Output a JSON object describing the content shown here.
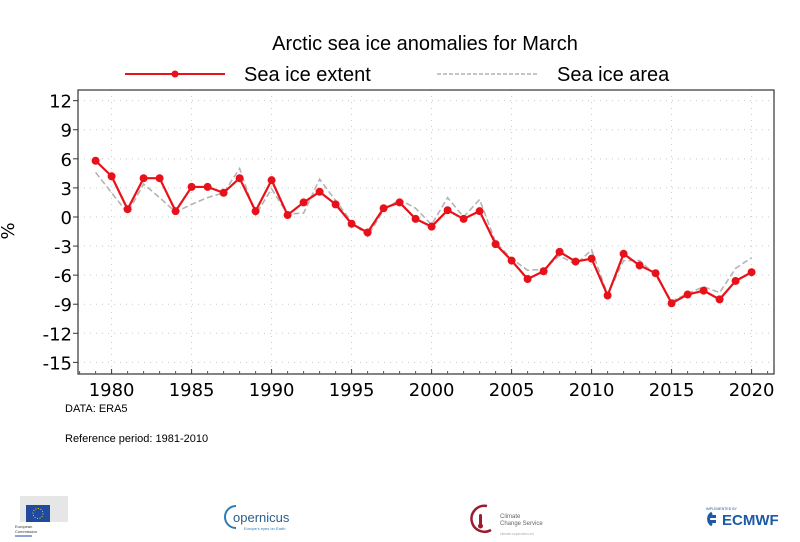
{
  "chart_data": {
    "type": "line",
    "title": "Arctic sea ice anomalies for March",
    "xlabel": "",
    "ylabel": "%",
    "xlim": [
      1977.9,
      2021.4
    ],
    "ylim": [
      -16.2,
      13.1
    ],
    "xticks": [
      1980,
      1985,
      1990,
      1995,
      2000,
      2005,
      2010,
      2015,
      2020
    ],
    "xtick_labels": [
      "1980",
      "1985",
      "1990",
      "1995",
      "2000",
      "2005",
      "2010",
      "2015",
      "2020"
    ],
    "yticks": [
      12,
      9,
      6,
      3,
      0,
      -3,
      -6,
      -9,
      -12,
      -15
    ],
    "ytick_labels": [
      "12",
      "9",
      "6",
      "3",
      "0",
      "-3",
      "-6",
      "-9",
      "-12",
      "-15"
    ],
    "grid": true,
    "legend_position": "top-center",
    "x": [
      1979,
      1980,
      1981,
      1982,
      1983,
      1984,
      1985,
      1986,
      1987,
      1988,
      1989,
      1990,
      1991,
      1992,
      1993,
      1994,
      1995,
      1996,
      1997,
      1998,
      1999,
      2000,
      2001,
      2002,
      2003,
      2004,
      2005,
      2006,
      2007,
      2008,
      2009,
      2010,
      2011,
      2012,
      2013,
      2014,
      2015,
      2016,
      2017,
      2018,
      2019,
      2020
    ],
    "series": [
      {
        "name": "Sea ice extent",
        "color": "#e8111a",
        "style": "solid-markers",
        "values": [
          5.8,
          4.2,
          0.8,
          4.0,
          4.0,
          0.6,
          3.1,
          3.1,
          2.5,
          4.0,
          0.6,
          3.8,
          0.2,
          1.5,
          2.6,
          1.3,
          -0.7,
          -1.6,
          0.9,
          1.5,
          -0.2,
          -1.0,
          0.7,
          -0.2,
          0.6,
          -2.8,
          -4.5,
          -6.4,
          -5.6,
          -3.6,
          -4.6,
          -4.3,
          -8.1,
          -3.8,
          -5.0,
          -5.8,
          -8.9,
          -8.0,
          -7.6,
          -8.5,
          -6.6,
          -5.7
        ]
      },
      {
        "name": "Sea ice area",
        "color": "#b4b4b4",
        "style": "dashed",
        "values": [
          4.6,
          2.5,
          0.4,
          3.4,
          2.0,
          0.5,
          1.3,
          2.0,
          2.5,
          5.0,
          0.2,
          2.9,
          0.3,
          0.4,
          3.9,
          1.7,
          -0.5,
          -2.0,
          0.7,
          1.8,
          0.9,
          -0.8,
          2.0,
          0.0,
          1.8,
          -2.6,
          -4.3,
          -5.5,
          -5.4,
          -4.0,
          -4.9,
          -3.4,
          -8.0,
          -4.5,
          -4.5,
          -6.0,
          -8.7,
          -7.9,
          -7.2,
          -7.8,
          -5.3,
          -4.2
        ]
      }
    ]
  },
  "notes": {
    "data_source": "DATA: ERA5",
    "reference_period": "Reference period: 1981-2010"
  },
  "logos": {
    "ec": {
      "line1": "European",
      "line2": "Commission"
    },
    "copernicus": {
      "name": "opernicus",
      "tagline": "Europe's eyes on Earth"
    },
    "c3s": {
      "line1": "Climate",
      "line2": "Change Service",
      "url": "climate.copernicus.eu"
    },
    "ecmwf": {
      "caption": "IMPLEMENTED BY",
      "name": "ECMWF"
    }
  }
}
